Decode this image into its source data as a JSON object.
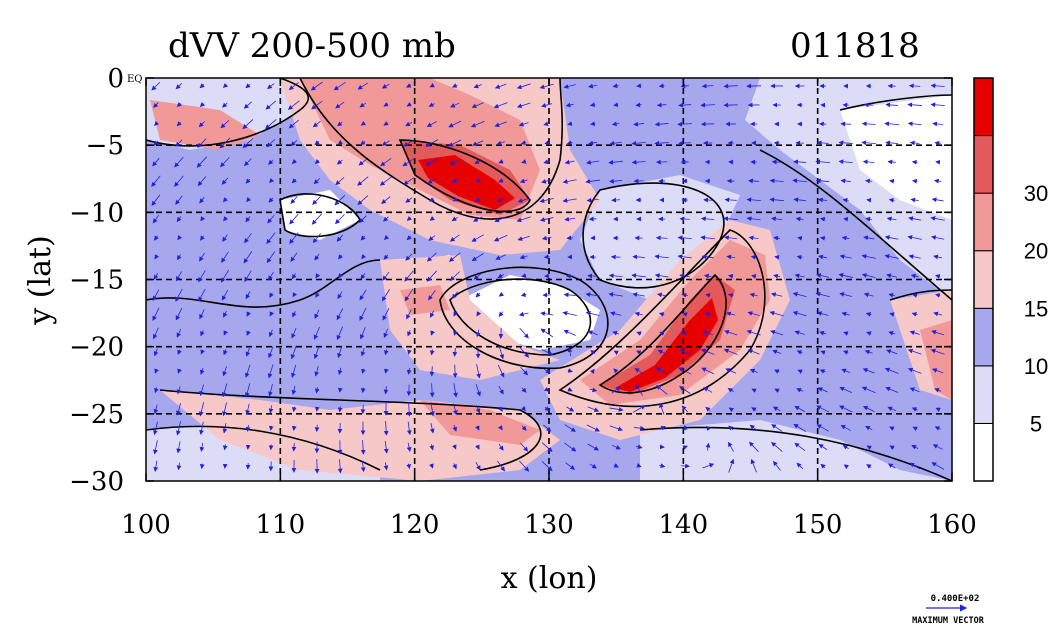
{
  "chart_data": {
    "type": "heatmap",
    "title": "dVV 200-500 mb",
    "date_label": "011818",
    "xlabel": "x (lon)",
    "ylabel": "y (lat)",
    "xlim": [
      100,
      160
    ],
    "ylim": [
      -30,
      0
    ],
    "x_ticks": [
      "100",
      "110",
      "120",
      "130",
      "140",
      "150",
      "160"
    ],
    "x_tick_values": [
      100,
      110,
      120,
      130,
      140,
      150,
      160
    ],
    "y_ticks": [
      "0",
      "−5",
      "−10",
      "−15",
      "−20",
      "−25",
      "−30"
    ],
    "y_tick_values": [
      0,
      -5,
      -10,
      -15,
      -20,
      -25,
      -30
    ],
    "origin_marker": "EQ",
    "grid": "dashed",
    "colorbar": {
      "levels": [
        5,
        10,
        15,
        20,
        30
      ],
      "labels": [
        "5",
        "10",
        "15",
        "20",
        "30"
      ],
      "colors": [
        "#ffffff",
        "#dcdcf7",
        "#a7a7ee",
        "#f7c8c8",
        "#f19999",
        "#e45a5a",
        "#e60000"
      ]
    },
    "vector_legend": {
      "magnitude": "0.400E+02",
      "label": "MAXIMUM VECTOR",
      "color": "#2222dd"
    },
    "features": [
      {
        "name": "max-shear-core-north",
        "lon": 126,
        "lat": -8,
        "band": ">30"
      },
      {
        "name": "max-shear-core-south",
        "lon": 140,
        "lat": -20.5,
        "band": ">30"
      },
      {
        "name": "cyclone-low-shear-center",
        "lon": 128,
        "lat": -18,
        "band": "<5"
      }
    ]
  }
}
